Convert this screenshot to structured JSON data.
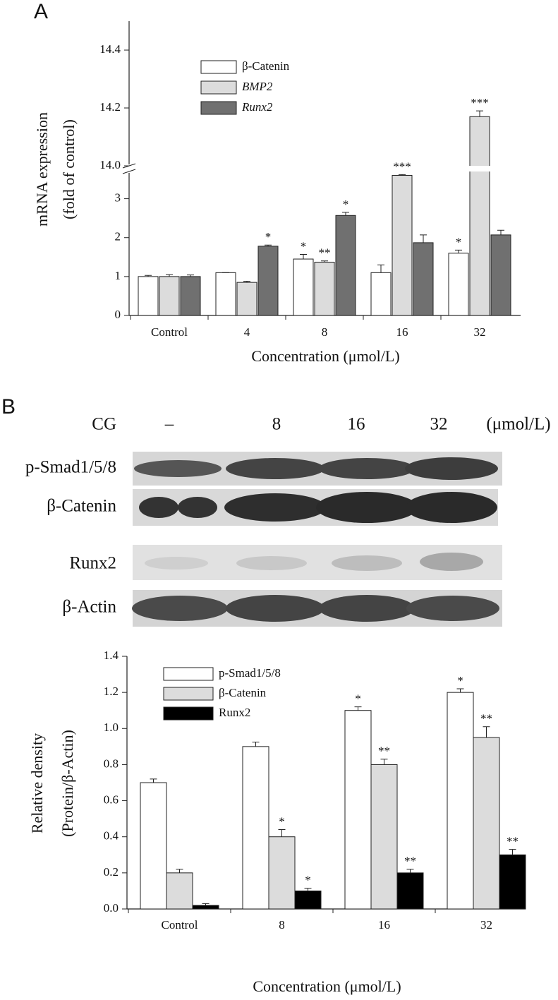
{
  "panel_labels": [
    "A",
    "B"
  ],
  "blot": {
    "treatment": "CG",
    "lanes": [
      "–",
      "8",
      "16",
      "32"
    ],
    "unit": "(μmol/L)",
    "rows": [
      "p-Smad1/5/8",
      "β-Catenin",
      "Runx2",
      "β-Actin"
    ]
  },
  "chart_data": [
    {
      "type": "bar",
      "y_label": [
        "mRNA expression",
        "(fold of  control)"
      ],
      "x_label": "Concentration (μmol/L)",
      "categories": [
        "Control",
        "4",
        "8",
        "16",
        "32"
      ],
      "ylim": [
        0,
        14.5
      ],
      "y_break": [
        3.7,
        14.0
      ],
      "yticks": [
        0,
        1,
        2,
        3,
        {
          "value": 14.0,
          "label": "14.0"
        },
        14.2,
        14.4
      ],
      "series": [
        {
          "name": "β-Catenin",
          "color": "#ffffff",
          "values": [
            1.0,
            1.1,
            1.45,
            1.1,
            1.6
          ],
          "errors": [
            0.03,
            0,
            0.12,
            0.2,
            0.08
          ],
          "significance": [
            null,
            null,
            "*",
            null,
            "*"
          ]
        },
        {
          "name": "BMP2",
          "color": "#dcdcdc",
          "values": [
            1.0,
            0.85,
            1.37,
            3.6,
            14.17
          ],
          "errors": [
            0.05,
            0.03,
            0.03,
            0.02,
            0.02
          ],
          "significance": [
            null,
            null,
            "**",
            "***",
            "***"
          ]
        },
        {
          "name": "Runx2",
          "color": "#707070",
          "values": [
            1.0,
            1.78,
            2.57,
            1.87,
            2.07
          ],
          "errors": [
            0.04,
            0.03,
            0.08,
            0.2,
            0.12
          ],
          "significance": [
            null,
            "*",
            "*",
            null,
            null
          ]
        }
      ]
    },
    {
      "type": "bar",
      "y_label": [
        "Relative density",
        "(Protein/β-Actin)"
      ],
      "x_label": "Concentration (μmol/L)",
      "categories": [
        "Control",
        "8",
        "16",
        "32"
      ],
      "ylim": [
        0,
        1.4
      ],
      "yticks": [
        {
          "value": 0.0,
          "label": "0.0"
        },
        0.2,
        0.4,
        0.6,
        0.8,
        {
          "value": 1.0,
          "label": "1.0"
        },
        1.2,
        1.4
      ],
      "series": [
        {
          "name": "p-Smad1/5/8",
          "color": "#ffffff",
          "values": [
            0.7,
            0.9,
            1.1,
            1.2
          ],
          "errors": [
            0.02,
            0.025,
            0.02,
            0.02
          ],
          "significance": [
            null,
            null,
            "*",
            "*"
          ]
        },
        {
          "name": "β-Catenin",
          "color": "#dcdcdc",
          "values": [
            0.2,
            0.4,
            0.8,
            0.95
          ],
          "errors": [
            0.02,
            0.04,
            0.03,
            0.06
          ],
          "significance": [
            null,
            "*",
            "**",
            "**"
          ]
        },
        {
          "name": "Runx2",
          "color": "#000000",
          "values": [
            0.02,
            0.1,
            0.2,
            0.3
          ],
          "errors": [
            0.01,
            0.015,
            0.02,
            0.03
          ],
          "significance": [
            null,
            "*",
            "**",
            "**"
          ]
        }
      ]
    }
  ]
}
